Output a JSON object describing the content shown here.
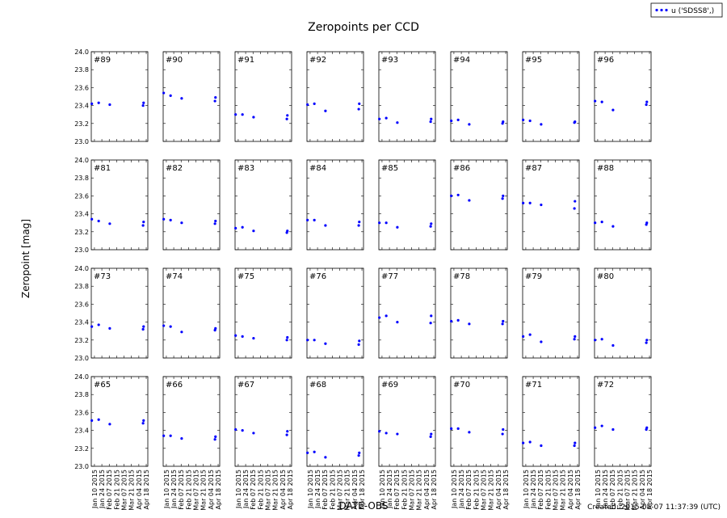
{
  "chart_data": {
    "type": "scatter",
    "title": "Zeropoints per CCD",
    "xlabel": "DATE-OBS",
    "ylabel": "Zeropoint [mag]",
    "footer": "Created: 2015-05-07 11:37:39 (UTC)",
    "legend": {
      "label": "u ('SDSS8',)",
      "placement": "top-right",
      "color": "#0000ff"
    },
    "ylim": [
      23.0,
      24.0
    ],
    "yticks": [
      "23.0",
      "23.2",
      "23.4",
      "23.6",
      "23.8",
      "24.0"
    ],
    "xlim": [
      "2015-01-04",
      "2015-04-21"
    ],
    "xticks": [
      {
        "date": "2015-01-10",
        "label": "Jan 10 2015"
      },
      {
        "date": "2015-01-24",
        "label": "Jan 24 2015"
      },
      {
        "date": "2015-02-07",
        "label": "Feb 07 2015"
      },
      {
        "date": "2015-02-21",
        "label": "Feb 21 2015"
      },
      {
        "date": "2015-03-07",
        "label": "Mar 07 2015"
      },
      {
        "date": "2015-03-21",
        "label": "Mar 21 2015"
      },
      {
        "date": "2015-04-04",
        "label": "Apr 04 2015"
      },
      {
        "date": "2015-04-18",
        "label": "Apr 18 2015"
      }
    ],
    "x": [
      "2015-01-05",
      "2015-01-18",
      "2015-02-08",
      "2015-04-12",
      "2015-04-13"
    ],
    "rows": [
      [
        {
          "label": "#89",
          "y": [
            23.42,
            23.43,
            23.41,
            23.4,
            23.43
          ]
        },
        {
          "label": "#90",
          "y": [
            23.54,
            23.51,
            23.48,
            23.45,
            23.49
          ]
        },
        {
          "label": "#91",
          "y": [
            23.3,
            23.3,
            23.27,
            23.25,
            23.29
          ]
        },
        {
          "label": "#92",
          "y": [
            23.41,
            23.42,
            23.34,
            23.36,
            23.42
          ]
        },
        {
          "label": "#93",
          "y": [
            23.25,
            23.26,
            23.21,
            23.22,
            23.25
          ]
        },
        {
          "label": "#94",
          "y": [
            23.23,
            23.24,
            23.19,
            23.2,
            23.22
          ]
        },
        {
          "label": "#95",
          "y": [
            23.24,
            23.23,
            23.19,
            23.21,
            23.22
          ]
        },
        {
          "label": "#96",
          "y": [
            23.45,
            23.44,
            23.35,
            23.41,
            23.44
          ]
        }
      ],
      [
        {
          "label": "#81",
          "y": [
            23.34,
            23.32,
            23.29,
            23.27,
            23.31
          ]
        },
        {
          "label": "#82",
          "y": [
            23.34,
            23.33,
            23.3,
            23.29,
            23.32
          ]
        },
        {
          "label": "#83",
          "y": [
            23.24,
            23.25,
            23.21,
            23.19,
            23.21
          ]
        },
        {
          "label": "#84",
          "y": [
            23.33,
            23.33,
            23.27,
            23.27,
            23.31
          ]
        },
        {
          "label": "#85",
          "y": [
            23.3,
            23.3,
            23.25,
            23.26,
            23.29
          ]
        },
        {
          "label": "#86",
          "y": [
            23.6,
            23.61,
            23.55,
            23.57,
            23.6
          ]
        },
        {
          "label": "#87",
          "y": [
            23.52,
            23.52,
            23.5,
            23.46,
            23.54
          ]
        },
        {
          "label": "#88",
          "y": [
            23.3,
            23.31,
            23.26,
            23.28,
            23.3
          ]
        }
      ],
      [
        {
          "label": "#73",
          "y": [
            23.35,
            23.37,
            23.33,
            23.32,
            23.35
          ]
        },
        {
          "label": "#74",
          "y": [
            23.36,
            23.35,
            23.29,
            23.31,
            23.33
          ]
        },
        {
          "label": "#75",
          "y": [
            23.25,
            23.24,
            23.22,
            23.2,
            23.23
          ]
        },
        {
          "label": "#76",
          "y": [
            23.2,
            23.2,
            23.16,
            23.15,
            23.19
          ]
        },
        {
          "label": "#77",
          "y": [
            23.45,
            23.47,
            23.4,
            23.39,
            23.47
          ]
        },
        {
          "label": "#78",
          "y": [
            23.41,
            23.42,
            23.38,
            23.38,
            23.41
          ]
        },
        {
          "label": "#79",
          "y": [
            23.24,
            23.26,
            23.18,
            23.21,
            23.24
          ]
        },
        {
          "label": "#80",
          "y": [
            23.2,
            23.21,
            23.14,
            23.17,
            23.2
          ]
        }
      ],
      [
        {
          "label": "#65",
          "y": [
            23.51,
            23.52,
            23.47,
            23.48,
            23.51
          ]
        },
        {
          "label": "#66",
          "y": [
            23.34,
            23.34,
            23.31,
            23.3,
            23.33
          ]
        },
        {
          "label": "#67",
          "y": [
            23.41,
            23.4,
            23.37,
            23.35,
            23.39
          ]
        },
        {
          "label": "#68",
          "y": [
            23.15,
            23.16,
            23.1,
            23.12,
            23.15
          ]
        },
        {
          "label": "#69",
          "y": [
            23.39,
            23.37,
            23.36,
            23.33,
            23.36
          ]
        },
        {
          "label": "#70",
          "y": [
            23.42,
            23.42,
            23.38,
            23.36,
            23.41
          ]
        },
        {
          "label": "#71",
          "y": [
            23.26,
            23.27,
            23.23,
            23.23,
            23.26
          ]
        },
        {
          "label": "#72",
          "y": [
            23.43,
            23.45,
            23.41,
            23.41,
            23.43
          ]
        }
      ]
    ]
  }
}
